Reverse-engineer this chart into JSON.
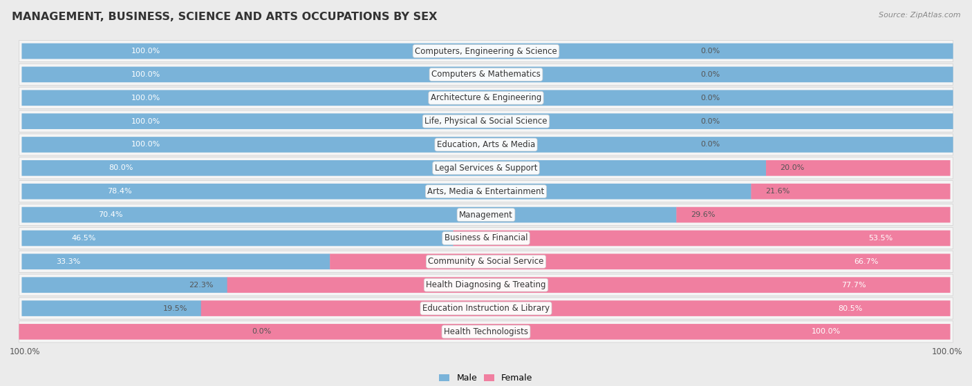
{
  "title": "MANAGEMENT, BUSINESS, SCIENCE AND ARTS OCCUPATIONS BY SEX",
  "source": "Source: ZipAtlas.com",
  "categories": [
    "Computers, Engineering & Science",
    "Computers & Mathematics",
    "Architecture & Engineering",
    "Life, Physical & Social Science",
    "Education, Arts & Media",
    "Legal Services & Support",
    "Arts, Media & Entertainment",
    "Management",
    "Business & Financial",
    "Community & Social Service",
    "Health Diagnosing & Treating",
    "Education Instruction & Library",
    "Health Technologists"
  ],
  "male": [
    100.0,
    100.0,
    100.0,
    100.0,
    100.0,
    80.0,
    78.4,
    70.4,
    46.5,
    33.3,
    22.3,
    19.5,
    0.0
  ],
  "female": [
    0.0,
    0.0,
    0.0,
    0.0,
    0.0,
    20.0,
    21.6,
    29.6,
    53.5,
    66.7,
    77.7,
    80.5,
    100.0
  ],
  "male_color": "#7ab3d9",
  "female_color": "#f07fa0",
  "bg_color": "#ebebeb",
  "row_bg_color": "#f5f5f5",
  "title_fontsize": 11.5,
  "label_fontsize": 8.5,
  "pct_fontsize": 8.0,
  "bar_height": 0.68,
  "figsize": [
    14.06,
    5.59
  ]
}
